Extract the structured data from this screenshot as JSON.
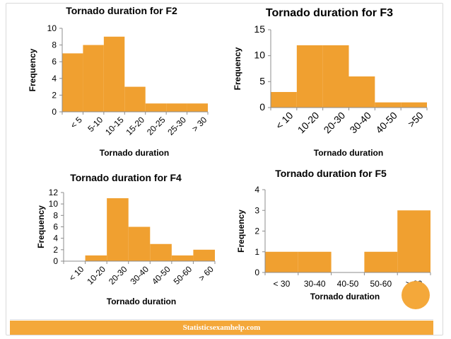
{
  "footer": {
    "text": "Statisticsexamhelp.com"
  },
  "colors": {
    "bar": "#f0a030",
    "accent": "#f4a83a"
  },
  "chart_data": [
    {
      "type": "bar",
      "title": "Tornado duration for F2",
      "xlabel": "Tornado duration",
      "ylabel": "Frequency",
      "categories": [
        "< 5",
        "5-10",
        "10-15",
        "15-20",
        "20-25",
        "25-30",
        "> 30"
      ],
      "values": [
        7,
        8,
        9,
        3,
        1,
        1,
        1
      ],
      "ylim": [
        0,
        10
      ],
      "yticks": [
        0,
        2,
        4,
        6,
        8,
        10
      ],
      "grid": false
    },
    {
      "type": "bar",
      "title": "Tornado duration for F3",
      "xlabel": "Tornado duration",
      "ylabel": "Frequency",
      "categories": [
        "< 10",
        "10-20",
        "20-30",
        "30-40",
        "40-50",
        ">50"
      ],
      "values": [
        3,
        12,
        12,
        6,
        1,
        1
      ],
      "ylim": [
        0,
        15
      ],
      "yticks": [
        0,
        5,
        10,
        15
      ],
      "grid": false
    },
    {
      "type": "bar",
      "title": "Tornado duration for F4",
      "xlabel": "Tornado duration",
      "ylabel": "Frequency",
      "categories": [
        "< 10",
        "10-20",
        "20-30",
        "30-40",
        "40-50",
        "50-60",
        "> 60"
      ],
      "values": [
        0,
        1,
        11,
        6,
        3,
        1,
        2
      ],
      "ylim": [
        0,
        12
      ],
      "yticks": [
        0,
        2,
        4,
        6,
        8,
        10,
        12
      ],
      "grid": false
    },
    {
      "type": "bar",
      "title": "Tornado duration for F5",
      "xlabel": "Tornado duration",
      "ylabel": "Frequency",
      "categories": [
        "< 30",
        "30-40",
        "40-50",
        "50-60",
        "> 60"
      ],
      "values": [
        1,
        1,
        0,
        1,
        3
      ],
      "ylim": [
        0,
        4
      ],
      "yticks": [
        0,
        1,
        2,
        3,
        4
      ],
      "grid": false
    }
  ]
}
